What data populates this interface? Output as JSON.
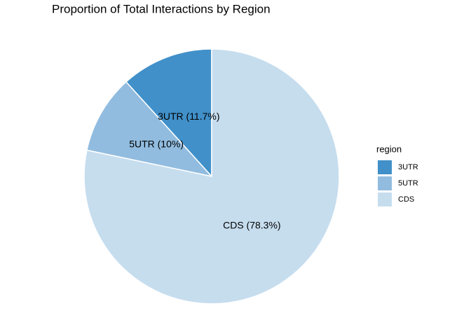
{
  "chart_data": {
    "type": "pie",
    "title": "Proportion of Total Interactions by Region",
    "categories": [
      "3UTR",
      "5UTR",
      "CDS"
    ],
    "values": [
      11.7,
      10,
      78.3
    ],
    "value_labels": [
      "3UTR (11.7%)",
      "5UTR (10%)",
      "CDS (78.3%)"
    ],
    "colors": [
      "#4190c9",
      "#91bcdf",
      "#c6ddee"
    ],
    "legend_title": "region",
    "legend_position": "right"
  }
}
